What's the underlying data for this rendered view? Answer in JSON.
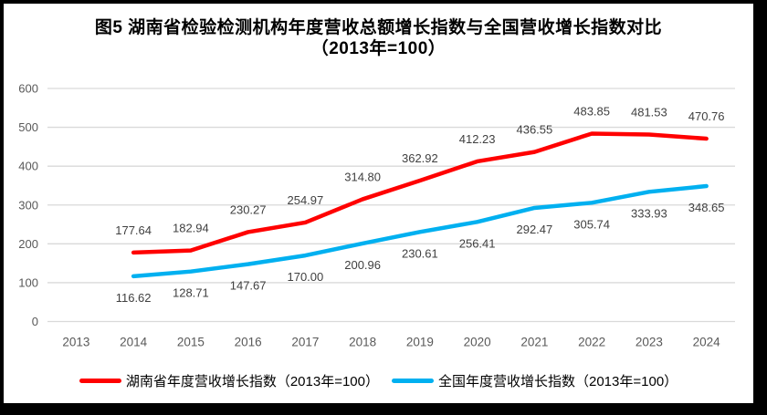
{
  "title": {
    "line1": "图5 湖南省检验检测机构年度营收总额增长指数与全国营收增长指数对比",
    "line2": "（2013年=100）"
  },
  "chart_data": {
    "type": "line",
    "categories": [
      "2013",
      "2014",
      "2015",
      "2016",
      "2017",
      "2018",
      "2019",
      "2020",
      "2021",
      "2022",
      "2023",
      "2024"
    ],
    "series": [
      {
        "name": "湖南省年度营收增长指数（2013年=100）",
        "color": "#FF0000",
        "label_position": "above",
        "values": [
          null,
          177.64,
          182.94,
          230.27,
          254.97,
          314.8,
          362.92,
          412.23,
          436.55,
          483.85,
          481.53,
          470.76
        ]
      },
      {
        "name": "全国年度营收增长指数（2013年=100）",
        "color": "#00B0F0",
        "label_position": "below",
        "values": [
          null,
          116.62,
          128.71,
          147.67,
          170.0,
          200.96,
          230.61,
          256.41,
          292.47,
          305.74,
          333.93,
          348.65
        ]
      }
    ],
    "xlabel": "",
    "ylabel": "",
    "ylim": [
      0,
      600
    ],
    "yticks": [
      0,
      100,
      200,
      300,
      400,
      500,
      600
    ],
    "grid": true,
    "data_labels": true,
    "label_decimals": 2,
    "legend_position": "bottom"
  },
  "colors": {
    "frame": "#000000",
    "background": "#FFFFFF",
    "gridline": "#D9D9D9",
    "axis_text": "#595959",
    "data_label_text": "#404040",
    "title_text": "#000000"
  }
}
